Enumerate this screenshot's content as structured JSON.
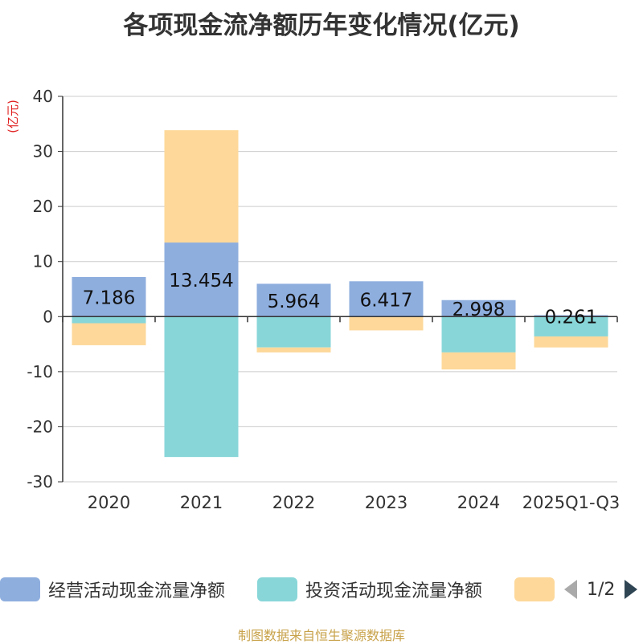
{
  "chart_data": {
    "type": "bar",
    "stacked": true,
    "title": "各项现金流净额历年变化情况(亿元)",
    "ylabel": "(亿元)",
    "xlabel": "",
    "ylim": [
      -30,
      40
    ],
    "yticks": [
      40,
      30,
      20,
      10,
      0,
      -10,
      -20,
      -30
    ],
    "grid": true,
    "categories": [
      "2020",
      "2021",
      "2022",
      "2023",
      "2024",
      "2025Q1-Q3"
    ],
    "series": [
      {
        "name": "经营活动现金流量净额",
        "color": "#8eaede",
        "values": [
          7.186,
          13.454,
          5.964,
          6.417,
          2.998,
          0.261
        ],
        "labels": [
          "7.186",
          "13.454",
          "5.964",
          "6.417",
          "2.998",
          "0.261"
        ]
      },
      {
        "name": "投资活动现金流量净额",
        "color": "#88d6d8",
        "values": [
          -1.2,
          -25.5,
          -5.6,
          -0.1,
          -6.5,
          -3.6
        ]
      },
      {
        "name": "",
        "color": "#fdd89a",
        "values": [
          -4.0,
          20.4,
          -0.9,
          -2.4,
          -3.1,
          -2.0
        ]
      }
    ]
  },
  "legend": {
    "page": "1/2"
  },
  "source": "制图数据来自恒生聚源数据库"
}
